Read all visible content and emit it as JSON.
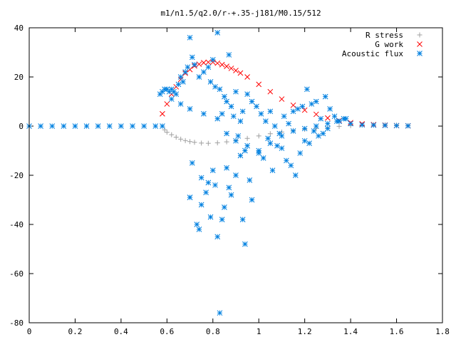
{
  "chart_data": {
    "type": "scatter",
    "title": "m1/n1.5/q2.0/r-+.35-j181/M0.15/512",
    "xlabel": "",
    "ylabel": "",
    "xlim": [
      0,
      1.8
    ],
    "ylim": [
      -80,
      40
    ],
    "x_ticks": [
      "0",
      "0.2",
      "0.4",
      "0.6",
      "0.8",
      "1",
      "1.2",
      "1.4",
      "1.6",
      "1.8"
    ],
    "y_ticks": [
      "40",
      "20",
      "0",
      "-20",
      "-40",
      "-60",
      "-80"
    ],
    "legend_position": "top-right",
    "series": [
      {
        "name": "R stress",
        "marker": "plus",
        "color": "#a0a0a0",
        "x": [
          0.58,
          0.59,
          0.6,
          0.62,
          0.64,
          0.66,
          0.68,
          0.7,
          0.72,
          0.75,
          0.78,
          0.82,
          0.86,
          0.9,
          0.95,
          1.0,
          1.05,
          1.1,
          1.15,
          1.2,
          1.25,
          1.3,
          1.35,
          1.4,
          1.45,
          1.5,
          1.55,
          1.6,
          1.65
        ],
        "y": [
          0,
          -1.5,
          -2.5,
          -3.5,
          -4.5,
          -5.3,
          -5.9,
          -6.3,
          -6.6,
          -6.9,
          -7.0,
          -6.8,
          -6.4,
          -5.8,
          -5.0,
          -4.0,
          -3.1,
          -2.4,
          -1.8,
          -1.3,
          -0.9,
          -0.5,
          -0.1,
          0.2,
          0.4,
          0.5,
          0.5,
          0.4,
          0.2
        ]
      },
      {
        "name": "G work",
        "marker": "cross",
        "color": "#ff0000",
        "x": [
          0.58,
          0.6,
          0.62,
          0.64,
          0.66,
          0.68,
          0.7,
          0.72,
          0.74,
          0.76,
          0.78,
          0.8,
          0.82,
          0.84,
          0.86,
          0.88,
          0.9,
          0.92,
          0.95,
          1.0,
          1.05,
          1.1,
          1.15,
          1.2,
          1.25,
          1.3,
          1.35,
          1.4,
          1.45,
          1.5,
          1.55,
          1.6,
          1.65
        ],
        "y": [
          5,
          9,
          13,
          16,
          19,
          21.5,
          23,
          24.5,
          25.2,
          25.8,
          26,
          26,
          25.6,
          25,
          24.3,
          23.5,
          22.6,
          21.6,
          20,
          17,
          14,
          11,
          8.5,
          6.5,
          4.8,
          3.3,
          2.2,
          1.4,
          0.9,
          0.6,
          0.4,
          0.2,
          0.1
        ]
      },
      {
        "name": "Acoustic flux",
        "marker": "star",
        "color": "#0080e0",
        "x": [
          0.0,
          0.05,
          0.1,
          0.15,
          0.2,
          0.25,
          0.3,
          0.35,
          0.4,
          0.45,
          0.5,
          0.55,
          0.58,
          0.57,
          0.58,
          0.59,
          0.6,
          0.61,
          0.62,
          0.63,
          0.64,
          0.65,
          0.66,
          0.67,
          0.68,
          0.69,
          0.7,
          0.71,
          0.72,
          0.74,
          0.76,
          0.78,
          0.79,
          0.8,
          0.81,
          0.82,
          0.83,
          0.84,
          0.85,
          0.86,
          0.87,
          0.88,
          0.89,
          0.9,
          0.91,
          0.92,
          0.93,
          0.94,
          0.95,
          0.97,
          0.99,
          1.01,
          1.03,
          1.05,
          1.07,
          1.09,
          1.11,
          1.13,
          1.15,
          1.17,
          1.19,
          1.21,
          1.23,
          1.25,
          1.27,
          1.29,
          1.31,
          1.33,
          1.35,
          1.37,
          1.4,
          1.45,
          1.5,
          1.55,
          1.6,
          1.65,
          0.7,
          0.7,
          0.73,
          0.75,
          0.74,
          0.83,
          0.82,
          0.85,
          0.88,
          0.94,
          0.71,
          0.78,
          0.8,
          0.86,
          0.92,
          0.96,
          1.0,
          1.04,
          1.08,
          1.12,
          1.16,
          1.2,
          1.24,
          1.28,
          0.75,
          0.77,
          0.79,
          0.81,
          0.84,
          0.87,
          0.9,
          0.93,
          0.97,
          1.02,
          1.06,
          1.1,
          1.14,
          1.18,
          1.22,
          1.26,
          1.3,
          1.34,
          0.62,
          0.66,
          0.7,
          0.76,
          0.82,
          0.86,
          0.9,
          0.95,
          1.0,
          1.05,
          1.1,
          1.15,
          1.2,
          1.25,
          1.3,
          1.35,
          1.38
        ],
        "y": [
          0,
          0,
          0,
          0,
          0,
          0,
          0,
          0,
          0,
          0,
          0,
          0,
          0,
          13,
          14,
          15,
          15,
          14,
          15,
          14,
          13,
          17,
          20,
          18,
          22,
          24,
          36,
          28,
          25,
          20,
          22,
          24,
          18,
          27,
          16,
          38,
          15,
          5,
          12,
          10,
          29,
          8,
          4,
          14,
          -4,
          2,
          6,
          -10,
          13,
          10,
          8,
          5,
          2,
          6,
          0,
          -3,
          4,
          1,
          6,
          7,
          8,
          15,
          9,
          10,
          3,
          12,
          7,
          4,
          2,
          3,
          1,
          0.5,
          0.4,
          0.3,
          0.2,
          0.1,
          -29,
          -29,
          -40,
          -32,
          -42,
          -76,
          -45,
          -33,
          -28,
          -48,
          -15,
          -23,
          -18,
          -17,
          -12,
          -22,
          -10,
          -5,
          -8,
          -14,
          -20,
          -6,
          -2,
          -3,
          -21,
          -27,
          -37,
          -24,
          -38,
          -25,
          -20,
          -38,
          -30,
          -13,
          -18,
          -9,
          -16,
          -11,
          -7,
          -4,
          -1,
          2,
          11,
          9,
          7,
          5,
          3,
          -3,
          -6,
          -8,
          -11,
          -7,
          -4,
          -2,
          -1,
          0,
          1,
          2,
          3
        ]
      }
    ]
  }
}
